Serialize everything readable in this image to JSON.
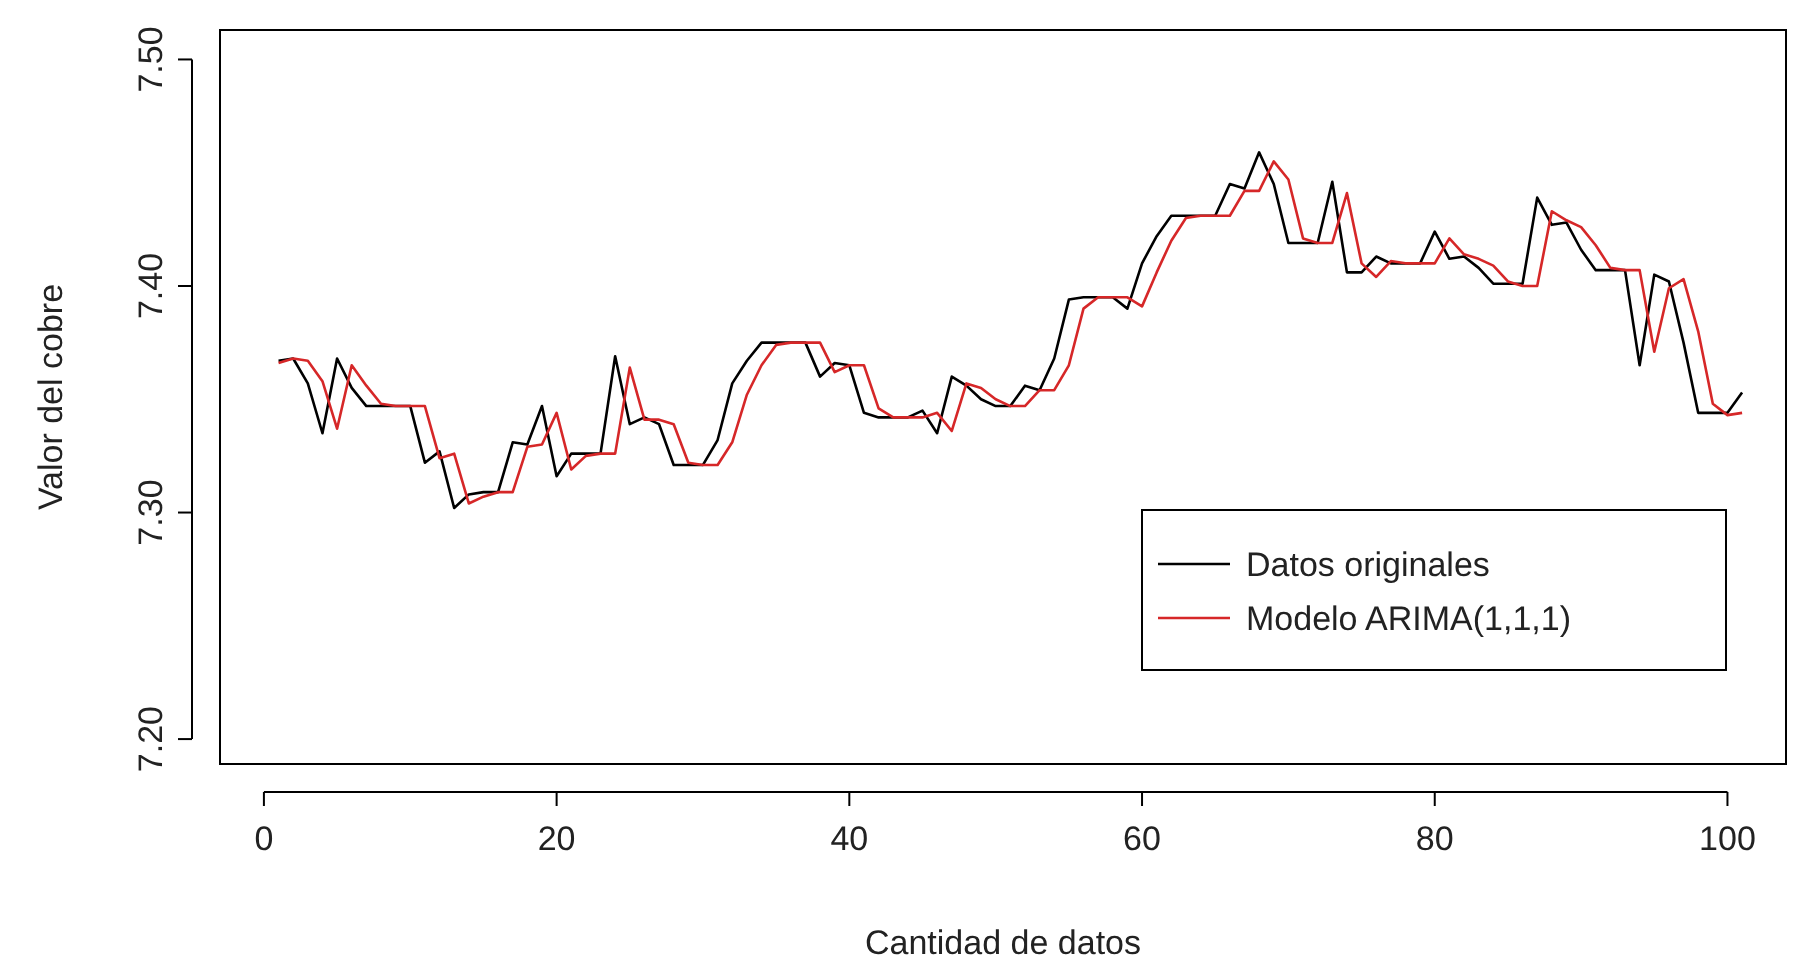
{
  "chart_data": {
    "type": "line",
    "xlabel": "Cantidad de datos",
    "ylabel": "Valor del cobre",
    "x": [
      1,
      2,
      3,
      4,
      5,
      6,
      7,
      8,
      9,
      10,
      11,
      12,
      13,
      14,
      15,
      16,
      17,
      18,
      19,
      20,
      21,
      22,
      23,
      24,
      25,
      26,
      27,
      28,
      29,
      30,
      31,
      32,
      33,
      34,
      35,
      36,
      37,
      38,
      39,
      40,
      41,
      42,
      43,
      44,
      45,
      46,
      47,
      48,
      49,
      50,
      51,
      52,
      53,
      54,
      55,
      56,
      57,
      58,
      59,
      60,
      61,
      62,
      63,
      64,
      65,
      66,
      67,
      68,
      69,
      70,
      71,
      72,
      73,
      74,
      75,
      76,
      77,
      78,
      79,
      80,
      81,
      82,
      83,
      84,
      85,
      86,
      87,
      88,
      89,
      90,
      91,
      92,
      93,
      94,
      95,
      96,
      97,
      98,
      99,
      100,
      101
    ],
    "series": [
      {
        "name": "Datos originales",
        "color": "#000000",
        "values": [
          7.367,
          7.368,
          7.357,
          7.335,
          7.368,
          7.355,
          7.347,
          7.347,
          7.347,
          7.347,
          7.322,
          7.327,
          7.302,
          7.308,
          7.309,
          7.309,
          7.331,
          7.33,
          7.347,
          7.316,
          7.326,
          7.326,
          7.326,
          7.369,
          7.339,
          7.342,
          7.339,
          7.321,
          7.321,
          7.321,
          7.332,
          7.357,
          7.367,
          7.375,
          7.375,
          7.375,
          7.375,
          7.36,
          7.366,
          7.365,
          7.344,
          7.342,
          7.342,
          7.342,
          7.345,
          7.335,
          7.36,
          7.356,
          7.35,
          7.347,
          7.347,
          7.356,
          7.354,
          7.368,
          7.394,
          7.395,
          7.395,
          7.395,
          7.39,
          7.41,
          7.422,
          7.431,
          7.431,
          7.431,
          7.431,
          7.445,
          7.443,
          7.459,
          7.445,
          7.419,
          7.419,
          7.419,
          7.446,
          7.406,
          7.406,
          7.413,
          7.41,
          7.41,
          7.41,
          7.424,
          7.412,
          7.413,
          7.408,
          7.401,
          7.401,
          7.401,
          7.439,
          7.427,
          7.428,
          7.416,
          7.407,
          7.407,
          7.407,
          7.365,
          7.405,
          7.402,
          7.375,
          7.344,
          7.344,
          7.344,
          7.353
        ]
      },
      {
        "name": "Modelo ARIMA(1,1,1)",
        "color": "#d62728",
        "values": [
          7.366,
          7.368,
          7.367,
          7.358,
          7.337,
          7.365,
          7.356,
          7.348,
          7.347,
          7.347,
          7.347,
          7.324,
          7.326,
          7.304,
          7.307,
          7.309,
          7.309,
          7.329,
          7.33,
          7.344,
          7.319,
          7.325,
          7.326,
          7.326,
          7.364,
          7.341,
          7.341,
          7.339,
          7.322,
          7.321,
          7.321,
          7.331,
          7.352,
          7.365,
          7.374,
          7.375,
          7.375,
          7.375,
          7.362,
          7.365,
          7.365,
          7.346,
          7.342,
          7.342,
          7.342,
          7.344,
          7.336,
          7.357,
          7.355,
          7.35,
          7.347,
          7.347,
          7.354,
          7.354,
          7.365,
          7.39,
          7.395,
          7.395,
          7.395,
          7.391,
          7.406,
          7.42,
          7.43,
          7.431,
          7.431,
          7.431,
          7.442,
          7.442,
          7.455,
          7.447,
          7.421,
          7.419,
          7.419,
          7.441,
          7.41,
          7.404,
          7.411,
          7.41,
          7.41,
          7.41,
          7.421,
          7.414,
          7.412,
          7.409,
          7.402,
          7.4,
          7.4,
          7.433,
          7.429,
          7.426,
          7.418,
          7.408,
          7.407,
          7.407,
          7.371,
          7.399,
          7.403,
          7.38,
          7.348,
          7.343,
          7.344
        ]
      }
    ],
    "xlim": [
      -3,
      104
    ],
    "xticks": [
      0,
      20,
      40,
      60,
      80,
      100
    ],
    "ylim": [
      7.189,
      7.513
    ],
    "yticks": [
      {
        "value": 7.2,
        "label": "7.20"
      },
      {
        "value": 7.3,
        "label": "7.30"
      },
      {
        "value": 7.4,
        "label": "7.40"
      },
      {
        "value": 7.5,
        "label": "7.50"
      }
    ],
    "grid": false,
    "legend": "bottom right",
    "line_style": "solid",
    "marker": "none"
  }
}
